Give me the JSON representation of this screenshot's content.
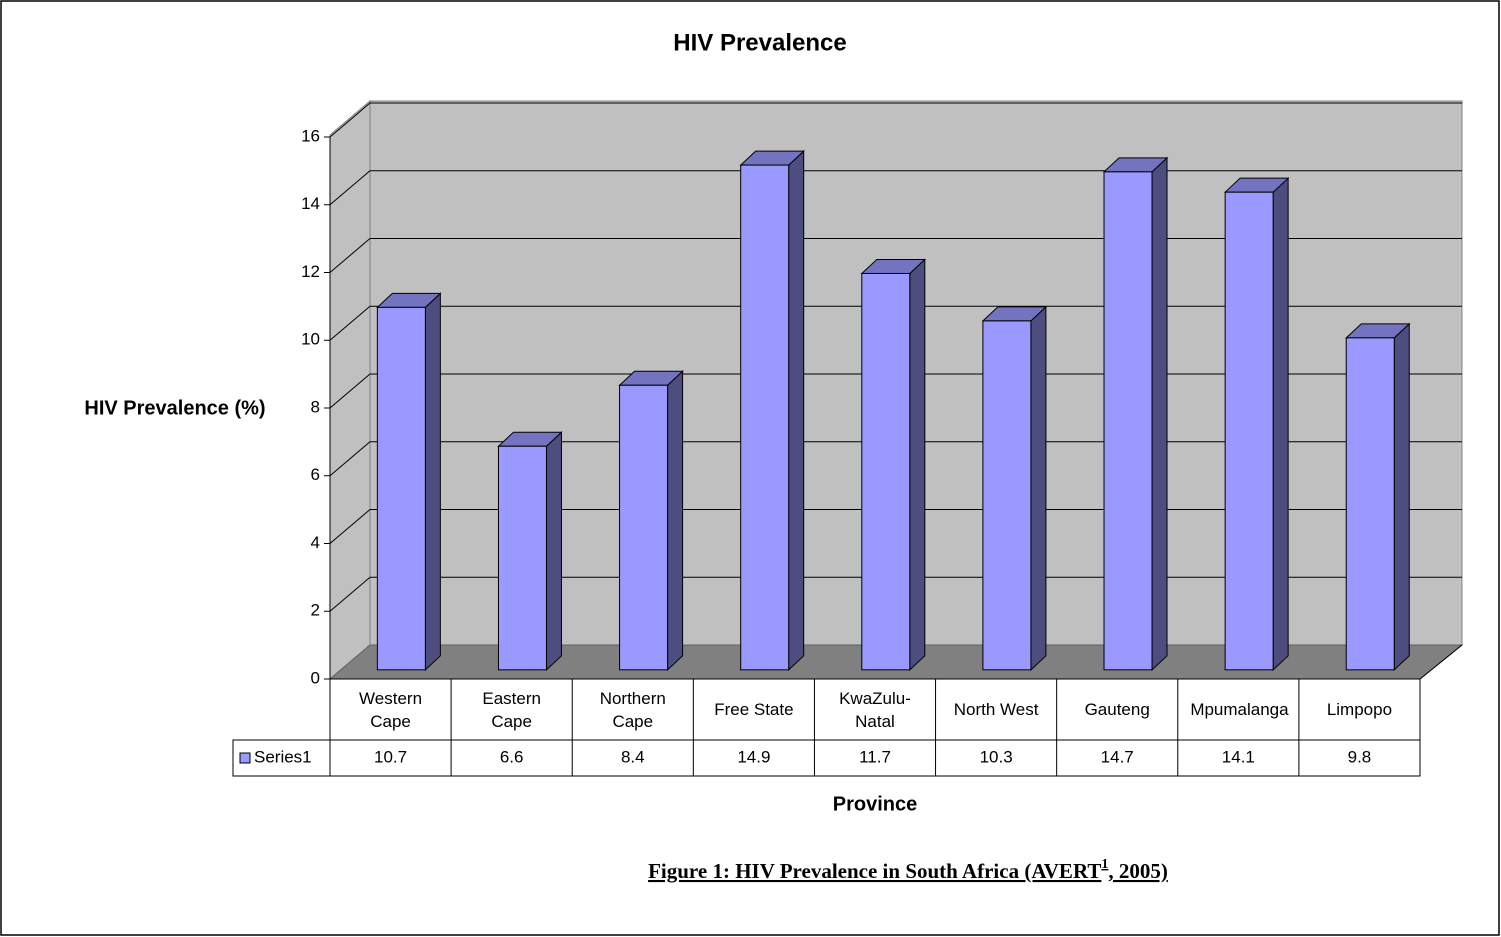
{
  "chart_data": {
    "type": "bar",
    "title": "HIV Prevalence",
    "y_label": "HIV Prevalence (%)",
    "x_label": "Province",
    "categories": [
      "Western Cape",
      "Eastern Cape",
      "Northern Cape",
      "Free State",
      "KwaZulu-Natal",
      "North West",
      "Gauteng",
      "Mpumalanga",
      "Limpopo"
    ],
    "series": [
      {
        "name": "Series1",
        "color": "#9999ff",
        "values": [
          10.7,
          6.6,
          8.4,
          14.9,
          11.7,
          10.3,
          14.7,
          14.1,
          9.8
        ]
      }
    ],
    "ylim": [
      0,
      16
    ],
    "yticks": [
      0,
      2,
      4,
      6,
      8,
      10,
      12,
      14,
      16
    ],
    "grid": true,
    "caption": {
      "text": "Figure 1: HIV Prevalence in South Africa (AVERT",
      "footnote": "1",
      "after": ", 2005)"
    }
  }
}
